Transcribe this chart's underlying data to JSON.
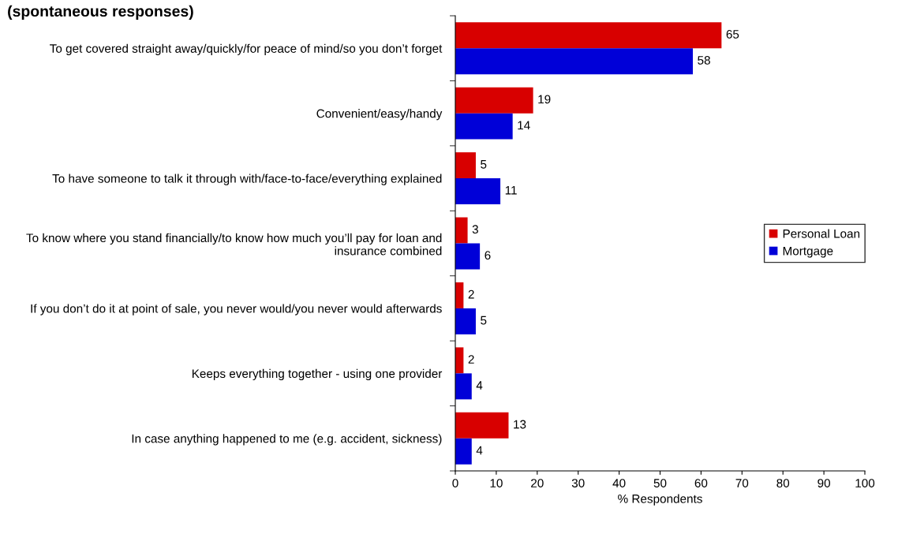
{
  "chart_data": {
    "type": "bar",
    "orientation": "horizontal",
    "title": "(spontaneous responses)",
    "xlabel": "% Respondents",
    "categories": [
      "To get covered straight away/quickly/for peace of mind/so you don’t forget",
      "Convenient/easy/handy",
      "To have someone to talk it through with/face-to-face/everything explained",
      "To know where you stand financially/to know how much you’ll pay for loan and insurance combined",
      "If you don’t do it at point of sale, you never would/you never would afterwards",
      "Keeps everything together - using one provider",
      "In case anything happened to me (e.g. accident, sickness)"
    ],
    "series": [
      {
        "name": "Personal Loan",
        "color": "#d80000",
        "values": [
          65,
          19,
          5,
          3,
          2,
          2,
          13
        ]
      },
      {
        "name": "Mortgage",
        "color": "#0000d8",
        "values": [
          58,
          14,
          11,
          6,
          5,
          4,
          4
        ]
      }
    ],
    "xlim": [
      0,
      100
    ],
    "xticks": [
      0,
      10,
      20,
      30,
      40,
      50,
      60,
      70,
      80,
      90,
      100
    ],
    "data_labels": true,
    "legend": "right",
    "grid": false
  }
}
